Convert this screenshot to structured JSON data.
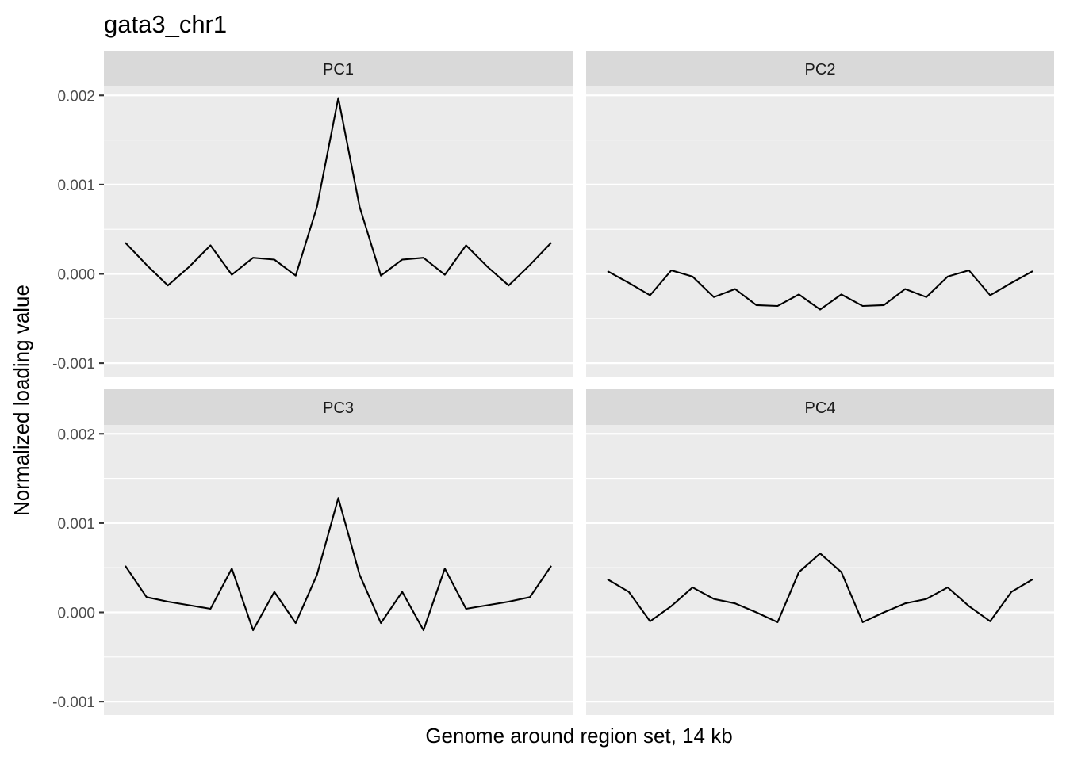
{
  "chart_data": {
    "type": "line",
    "title": "gata3_chr1",
    "xlabel": "Genome around region set, 14 kb",
    "ylabel": "Normalized loading value",
    "ylim": [
      -0.00115,
      0.0021
    ],
    "y_ticks": [
      -0.001,
      0.0,
      0.001,
      0.002
    ],
    "y_tick_labels": [
      "-0.001",
      "0.000",
      "0.001",
      "0.002"
    ],
    "grid": true,
    "x_ticks_shown": false,
    "facets": [
      {
        "label": "PC1",
        "values": [
          0.00035,
          0.0001,
          -0.00013,
          8e-05,
          0.00032,
          -1e-05,
          0.00018,
          0.00016,
          -2e-05,
          0.00075,
          0.00197,
          0.00075,
          -2e-05,
          0.00016,
          0.00018,
          -1e-05,
          0.00032,
          8e-05,
          -0.00013,
          0.0001,
          0.00035
        ]
      },
      {
        "label": "PC2",
        "values": [
          3e-05,
          -0.0001,
          -0.00024,
          4e-05,
          -3e-05,
          -0.00026,
          -0.00017,
          -0.00035,
          -0.00036,
          -0.00023,
          -0.0004,
          -0.00023,
          -0.00036,
          -0.00035,
          -0.00017,
          -0.00026,
          -3e-05,
          4e-05,
          -0.00024,
          -0.0001,
          3e-05
        ]
      },
      {
        "label": "PC3",
        "values": [
          0.00052,
          0.00017,
          0.00012,
          8e-05,
          4e-05,
          0.00049,
          -0.0002,
          0.00023,
          -0.00012,
          0.00042,
          0.00128,
          0.00042,
          -0.00012,
          0.00023,
          -0.0002,
          0.00049,
          4e-05,
          8e-05,
          0.00012,
          0.00017,
          0.00052
        ]
      },
      {
        "label": "PC4",
        "values": [
          0.00037,
          0.00023,
          -0.0001,
          7e-05,
          0.00028,
          0.00015,
          0.0001,
          0.0,
          -0.00011,
          0.00045,
          0.00066,
          0.00045,
          -0.00011,
          0.0,
          0.0001,
          0.00015,
          0.00028,
          7e-05,
          -0.0001,
          0.00023,
          0.00037
        ]
      }
    ]
  }
}
